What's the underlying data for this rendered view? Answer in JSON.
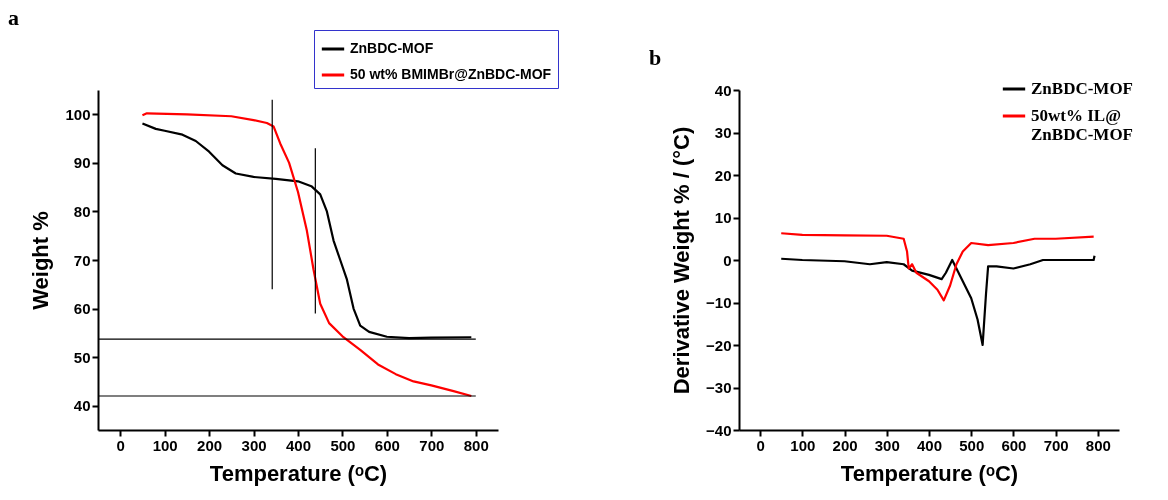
{
  "chart_data": [
    {
      "type": "line",
      "title": "a",
      "xlabel": "Temperature (ᵒC)",
      "ylabel": "Weight %",
      "xlim": [
        -50,
        850
      ],
      "xticks": [
        0,
        100,
        200,
        300,
        400,
        500,
        600,
        700,
        800
      ],
      "ylim": [
        35,
        105
      ],
      "yticks": [
        40,
        50,
        60,
        70,
        80,
        90,
        100
      ],
      "grid": false,
      "legend": "top right",
      "series": [
        {
          "name": "ZnBDC-MOF",
          "color": "#000000",
          "x": [
            50,
            80,
            100,
            140,
            170,
            200,
            230,
            260,
            300,
            350,
            400,
            430,
            450,
            465,
            480,
            495,
            510,
            525,
            540,
            560,
            600,
            650,
            700,
            790
          ],
          "values": [
            98.1,
            97,
            96.6,
            95.8,
            94.5,
            92.3,
            89.5,
            87.8,
            87.1,
            86.7,
            86.2,
            85.2,
            83.5,
            80,
            74,
            70,
            66,
            60,
            56.5,
            55.2,
            54.2,
            53.9,
            54,
            54.1
          ]
        },
        {
          "name": "50 wt% BMIMBr@ZnBDC-MOF",
          "color": "#ff0000",
          "x": [
            50,
            60,
            150,
            250,
            300,
            330,
            345,
            360,
            380,
            400,
            420,
            435,
            450,
            470,
            500,
            540,
            580,
            620,
            660,
            700,
            750,
            790
          ],
          "values": [
            99.8,
            100.2,
            100,
            99.6,
            98.8,
            98.2,
            97.5,
            94,
            90,
            84,
            76,
            68,
            61,
            57,
            54.3,
            51.5,
            48.5,
            46.5,
            45,
            44.2,
            43,
            42
          ]
        },
        {
          "color": "#000000",
          "x": [
            342,
            342
          ],
          "values": [
            64,
            103
          ]
        },
        {
          "color": "#000000",
          "x": [
            439,
            439
          ],
          "values": [
            59,
            93
          ]
        },
        {
          "color": "#000000",
          "x": [
            -50,
            800
          ],
          "values": [
            53.7,
            53.7
          ]
        },
        {
          "color": "#000000",
          "x": [
            -50,
            800
          ],
          "values": [
            42,
            42
          ]
        }
      ]
    },
    {
      "type": "line",
      "title": "b",
      "xlabel": "Temperature (ᵒC)",
      "ylabel": "Derivative Weight % / (°C)",
      "xlim": [
        -50,
        850
      ],
      "xticks": [
        0,
        100,
        200,
        300,
        400,
        500,
        600,
        700,
        800
      ],
      "ylim": [
        -40,
        40
      ],
      "yticks": [
        -40,
        -30,
        -20,
        -10,
        0,
        10,
        20,
        30,
        40
      ],
      "grid": false,
      "legend": "top right",
      "series": [
        {
          "name": "ZnBDC-MOF",
          "color": "#000000",
          "x": [
            50,
            100,
            200,
            260,
            300,
            340,
            360,
            400,
            430,
            440,
            455,
            465,
            480,
            500,
            515,
            527,
            535,
            540,
            560,
            600,
            640,
            670,
            790,
            792
          ],
          "values": [
            0.3,
            0,
            -0.3,
            -1,
            -0.5,
            -1,
            -2.5,
            -3.5,
            -4.5,
            -3,
            0,
            -2,
            -5,
            -9,
            -14,
            -20,
            -8,
            -1.5,
            -1.5,
            -2,
            -1,
            0,
            0,
            1
          ]
        },
        {
          "name": "50wt% IL@ ZnBDC-MOF",
          "color": "#ff0000",
          "x": [
            50,
            100,
            200,
            300,
            340,
            348,
            352,
            360,
            370,
            400,
            420,
            435,
            450,
            465,
            480,
            500,
            540,
            600,
            650,
            700,
            790
          ],
          "values": [
            6.3,
            5.9,
            5.8,
            5.7,
            5,
            2,
            -2,
            -1,
            -3,
            -5,
            -7,
            -9.5,
            -6,
            -1,
            2,
            4,
            3.5,
            4,
            5,
            5,
            5.5
          ]
        }
      ]
    }
  ]
}
